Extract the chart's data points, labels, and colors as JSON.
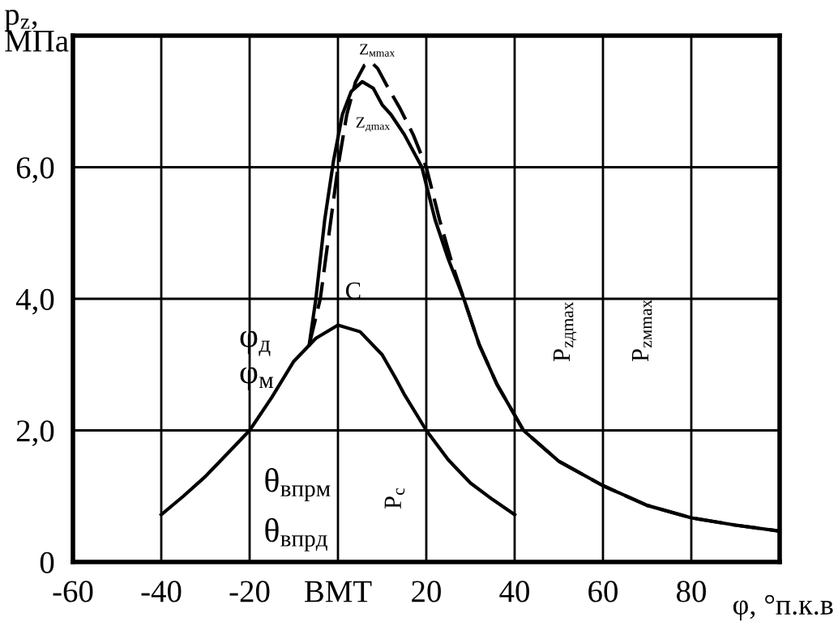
{
  "chart_data": {
    "type": "line",
    "xlabel": "φ, °п.к.в",
    "ylabel": "p$_{z}$,\nМПа",
    "xlim": [
      -60,
      100
    ],
    "ylim": [
      0,
      8
    ],
    "xticks": [
      -60,
      -40,
      -20,
      {
        "value": 0,
        "label": "ВМТ"
      },
      20,
      40,
      60,
      80,
      {
        "value": 100,
        "label": null
      }
    ],
    "yticks": [
      {
        "value": 0,
        "label": "0"
      },
      {
        "value": 2,
        "label": "2,0"
      },
      {
        "value": 4,
        "label": "4,0"
      },
      {
        "value": 6,
        "label": "6,0"
      },
      {
        "value": 8,
        "label": null
      }
    ],
    "grid": true,
    "series": [
      {
        "color": "#000000",
        "line_style": "solid",
        "x": [
          -40,
          -35,
          -30,
          -25,
          -20,
          -15,
          -10,
          -5,
          0,
          5,
          10,
          13,
          15,
          20,
          25,
          30,
          35,
          40
        ],
        "values": [
          0.72,
          1.0,
          1.3,
          1.65,
          2.0,
          2.5,
          3.05,
          3.4,
          3.6,
          3.5,
          3.15,
          2.8,
          2.55,
          2.0,
          1.55,
          1.2,
          0.95,
          0.72
        ]
      },
      {
        "color": "#000000",
        "line_style": "solid",
        "x": [
          -6.5,
          -5,
          -3,
          -1,
          1,
          3,
          5.5,
          8,
          10,
          12,
          15,
          19,
          22,
          25,
          28.5,
          32,
          36,
          42,
          50,
          60,
          70,
          80,
          90,
          100
        ],
        "values": [
          3.3,
          4.0,
          5.2,
          6.1,
          6.8,
          7.15,
          7.3,
          7.2,
          6.95,
          6.8,
          6.5,
          6.0,
          5.2,
          4.6,
          4.0,
          3.3,
          2.7,
          2.0,
          1.53,
          1.16,
          0.86,
          0.67,
          0.56,
          0.47
        ]
      },
      {
        "color": "#000000",
        "line_style": "dashed",
        "x": [
          -6.5,
          -4,
          -2,
          0,
          2,
          4,
          6,
          7.5,
          9,
          11,
          14,
          17,
          20,
          23,
          26,
          28.5,
          32,
          36,
          42,
          50,
          60,
          70,
          80,
          90,
          100
        ],
        "values": [
          3.3,
          4.0,
          5.0,
          6.0,
          6.8,
          7.3,
          7.55,
          7.6,
          7.5,
          7.25,
          6.9,
          6.5,
          6.0,
          5.2,
          4.5,
          4.0,
          3.3,
          2.7,
          2.0,
          1.53,
          1.16,
          0.86,
          0.67,
          0.56,
          0.47
        ]
      }
    ],
    "annotations": [
      "C",
      "Z$_{мmax}$",
      "Z$_{дmax}$",
      "φ$_{д}$",
      "φ$_{м}$",
      "θ$_{впрм}$",
      "θ$_{впрд}$",
      "P$_{c}$",
      "P$_{zдmax}$",
      "P$_{zмmax}$"
    ]
  }
}
